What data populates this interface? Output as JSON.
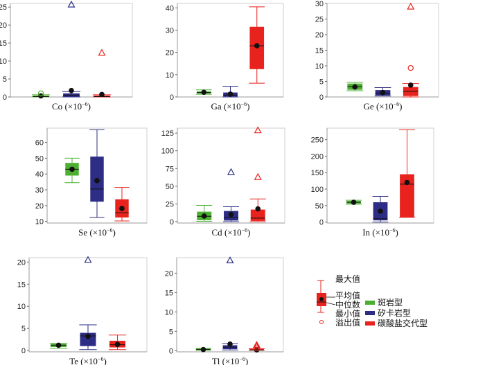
{
  "colors": {
    "porphyry": "#4caf32",
    "skarn": "#2e2d85",
    "carbonate": "#e8231e"
  },
  "legend": {
    "max_label": "最大值",
    "mean_label": "平均值",
    "median_label": "中位数",
    "min_label": "最小值",
    "outlier_label": "溢出值",
    "series": [
      {
        "key": "porphyry",
        "name": "斑岩型"
      },
      {
        "key": "skarn",
        "name": "矽卡岩型"
      },
      {
        "key": "carbonate",
        "name": "碳酸盐交代型"
      }
    ]
  },
  "chart_data": [
    {
      "type": "box",
      "element": "Co",
      "xlabel_unit": "(×10",
      "xlabel_exp": "−6",
      "xlabel_close": ")",
      "ylim": [
        0,
        26
      ],
      "yticks": [
        0,
        5,
        10,
        15,
        20,
        25
      ],
      "series": {
        "porphyry": {
          "min": 0,
          "q1": 0,
          "median": 0.1,
          "q3": 0.4,
          "max": 0.6,
          "mean": 0.3,
          "outliers": [
            {
              "v": 1.0,
              "s": "circle"
            }
          ]
        },
        "skarn": {
          "min": 0,
          "q1": 0.1,
          "median": 0.5,
          "q3": 1.0,
          "max": 1.5,
          "mean": 1.8,
          "outliers": [
            {
              "v": 25.7,
              "s": "triangle"
            }
          ]
        },
        "carbonate": {
          "min": 0,
          "q1": 0,
          "median": 0.1,
          "q3": 0.4,
          "max": 0.6,
          "mean": 0.7,
          "outliers": [
            {
              "v": 12.3,
              "s": "triangle"
            }
          ]
        }
      }
    },
    {
      "type": "box",
      "element": "Ga",
      "xlabel_unit": "(×10",
      "xlabel_exp": "−6",
      "xlabel_close": ")",
      "ylim": [
        0,
        42
      ],
      "yticks": [
        0,
        10,
        20,
        30,
        40
      ],
      "series": {
        "porphyry": {
          "min": 1.2,
          "q1": 1.5,
          "median": 2.0,
          "q3": 2.5,
          "max": 3.2,
          "mean": 2.1,
          "outliers": []
        },
        "skarn": {
          "min": 0,
          "q1": 0.2,
          "median": 0.8,
          "q3": 2.0,
          "max": 4.8,
          "mean": 1.3,
          "outliers": []
        },
        "carbonate": {
          "min": 6.2,
          "q1": 12.5,
          "median": 23.0,
          "q3": 31.5,
          "max": 40.5,
          "mean": 23.0,
          "outliers": []
        }
      }
    },
    {
      "type": "box",
      "element": "Ge",
      "xlabel_unit": "(×10",
      "xlabel_exp": "−6",
      "xlabel_close": ")",
      "ylim": [
        0,
        30
      ],
      "yticks": [
        0,
        5,
        10,
        15,
        20,
        25,
        30
      ],
      "series": {
        "porphyry": {
          "min": 2.0,
          "q1": 2.3,
          "median": 3.3,
          "q3": 4.3,
          "max": 4.7,
          "mean": 3.2,
          "outliers": []
        },
        "skarn": {
          "min": 0.3,
          "q1": 0.5,
          "median": 1.2,
          "q3": 2.2,
          "max": 3.0,
          "mean": 1.4,
          "outliers": []
        },
        "carbonate": {
          "min": 0,
          "q1": 0.3,
          "median": 1.8,
          "q3": 3.2,
          "max": 4.3,
          "mean": 3.8,
          "outliers": [
            {
              "v": 9.3,
              "s": "circle"
            },
            {
              "v": 29.0,
              "s": "triangle"
            }
          ]
        }
      }
    },
    {
      "type": "box",
      "element": "Se",
      "xlabel_unit": "(×10",
      "xlabel_exp": "−6",
      "xlabel_close": ")",
      "ylim": [
        9,
        69
      ],
      "yticks": [
        10,
        20,
        30,
        40,
        50,
        60
      ],
      "series": {
        "porphyry": {
          "min": 34.5,
          "q1": 39.0,
          "median": 43.0,
          "q3": 47.0,
          "max": 50.0,
          "mean": 43.0,
          "outliers": []
        },
        "skarn": {
          "min": 12.5,
          "q1": 22.5,
          "median": 30.5,
          "q3": 51.0,
          "max": 68.0,
          "mean": 35.8,
          "outliers": []
        },
        "carbonate": {
          "min": 10.3,
          "q1": 12.5,
          "median": 15.5,
          "q3": 24.0,
          "max": 31.5,
          "mean": 18.2,
          "outliers": []
        }
      }
    },
    {
      "type": "box",
      "element": "Cd",
      "xlabel_unit": "(×10",
      "xlabel_exp": "−6",
      "xlabel_close": ")",
      "ylim": [
        -2,
        132
      ],
      "yticks": [
        0,
        25,
        50,
        75,
        100,
        125
      ],
      "series": {
        "porphyry": {
          "min": 0.5,
          "q1": 2.0,
          "median": 7.5,
          "q3": 14.0,
          "max": 23.0,
          "mean": 7.8,
          "outliers": []
        },
        "skarn": {
          "min": 0,
          "q1": 1.5,
          "median": 6.0,
          "q3": 15.0,
          "max": 21.0,
          "mean": 10.0,
          "outliers": [
            {
              "v": 70.0,
              "s": "triangle"
            }
          ]
        },
        "carbonate": {
          "min": 0,
          "q1": 1.0,
          "median": 5.0,
          "q3": 17.0,
          "max": 32.0,
          "mean": 18.0,
          "outliers": [
            {
              "v": 63.0,
              "s": "triangle"
            },
            {
              "v": 129.0,
              "s": "triangle"
            }
          ]
        }
      }
    },
    {
      "type": "box",
      "element": "In",
      "xlabel_unit": "(×10",
      "xlabel_exp": "−6",
      "xlabel_close": ")",
      "ylim": [
        -3,
        285
      ],
      "yticks": [
        0,
        50,
        100,
        150,
        200,
        250
      ],
      "series": {
        "porphyry": {
          "min": 54,
          "q1": 56,
          "median": 60,
          "q3": 64,
          "max": 66,
          "mean": 60,
          "outliers": []
        },
        "skarn": {
          "min": 0,
          "q1": 5,
          "median": 10,
          "q3": 60,
          "max": 78,
          "mean": 33,
          "outliers": []
        },
        "carbonate": {
          "min": 14,
          "q1": 15,
          "median": 115,
          "q3": 145,
          "max": 280,
          "mean": 120,
          "outliers": []
        }
      }
    },
    {
      "type": "box",
      "element": "Te",
      "xlabel_unit": "(×10",
      "xlabel_exp": "−6",
      "xlabel_close": ")",
      "ylim": [
        -0.3,
        21
      ],
      "yticks": [
        0,
        5,
        10,
        15,
        20
      ],
      "series": {
        "porphyry": {
          "min": 0.5,
          "q1": 0.8,
          "median": 1.2,
          "q3": 1.5,
          "max": 1.6,
          "mean": 1.2,
          "outliers": []
        },
        "skarn": {
          "min": 0.2,
          "q1": 1.0,
          "median": 3.3,
          "q3": 4.0,
          "max": 5.8,
          "mean": 3.2,
          "outliers": [
            {
              "v": 20.5,
              "s": "triangle"
            }
          ]
        },
        "carbonate": {
          "min": 0.2,
          "q1": 0.7,
          "median": 1.3,
          "q3": 2.2,
          "max": 3.5,
          "mean": 1.4,
          "outliers": []
        }
      }
    },
    {
      "type": "box",
      "element": "Tl",
      "xlabel_unit": "(×10",
      "xlabel_exp": "−6",
      "xlabel_close": ")",
      "ylim": [
        -0.3,
        24
      ],
      "yticks": [
        0,
        5,
        10,
        15,
        20
      ],
      "series": {
        "porphyry": {
          "min": 0.1,
          "q1": 0.2,
          "median": 0.3,
          "q3": 0.5,
          "max": 0.6,
          "mean": 0.3,
          "outliers": []
        },
        "skarn": {
          "min": 0.2,
          "q1": 0.4,
          "median": 0.9,
          "q3": 1.4,
          "max": 1.8,
          "mean": 1.7,
          "outliers": [
            {
              "v": 23.3,
              "s": "triangle"
            }
          ]
        },
        "carbonate": {
          "min": 0.1,
          "q1": 0.1,
          "median": 0.2,
          "q3": 0.4,
          "max": 0.5,
          "mean": 0.2,
          "outliers": [
            {
              "v": 0.6,
              "s": "circle"
            },
            {
              "v": 1.1,
              "s": "triangle"
            },
            {
              "v": 1.5,
              "s": "triangle"
            }
          ]
        }
      }
    }
  ]
}
